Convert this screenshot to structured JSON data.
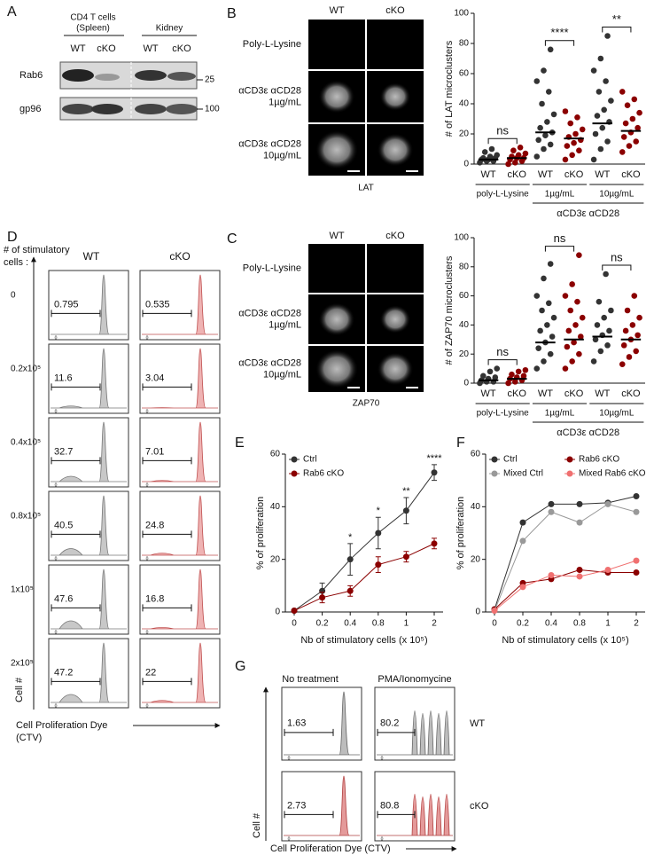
{
  "panel_a": {
    "label": "A",
    "group_1": [
      "CD4 T cells",
      "(Spleen)"
    ],
    "group_2": "Kidney",
    "lanes": [
      "WT",
      "cKO",
      "WT",
      "cKO"
    ],
    "rows": [
      "Rab6",
      "gp96"
    ],
    "markers": [
      25,
      100
    ]
  },
  "panel_b": {
    "label": "B",
    "columns": [
      "WT",
      "cKO"
    ],
    "rows": [
      [
        "Poly-L-Lysine"
      ],
      [
        "αCD3ε αCD28",
        "1µg/mL"
      ],
      [
        "αCD3ε αCD28",
        "10µg/mL"
      ]
    ],
    "stain": "LAT"
  },
  "panel_c": {
    "label": "C",
    "columns": [
      "WT",
      "cKO"
    ],
    "rows": [
      [
        "Poly-L-Lysine"
      ],
      [
        "αCD3ε αCD28",
        "1µg/mL"
      ],
      [
        "αCD3ε αCD28",
        "10µg/mL"
      ]
    ],
    "stain": "ZAP70"
  },
  "panel_d": {
    "label": "D",
    "axis_title": [
      "# of stimulatory",
      "cells :"
    ],
    "columns": [
      "WT",
      "cKO"
    ],
    "rows": [
      "0",
      "0.2x10⁵",
      "0.4x10⁵",
      "0.8x10⁵",
      "1x10⁵",
      "2x10⁵"
    ],
    "gates": [
      [
        0.795,
        0.535
      ],
      [
        11.6,
        3.04
      ],
      [
        32.7,
        7.01
      ],
      [
        40.5,
        24.8
      ],
      [
        47.6,
        16.8
      ],
      [
        47.2,
        22
      ]
    ],
    "axis_zero": 0,
    "y_axis": "Cell #",
    "x_axis": [
      "Cell Proliferation Dye",
      "(CTV)"
    ]
  },
  "panel_e": {
    "label": "E"
  },
  "panel_f": {
    "label": "F"
  },
  "panel_g": {
    "label": "G",
    "columns": [
      "No treatment",
      "PMA/Ionomycine"
    ],
    "rows": [
      "WT",
      "cKO"
    ],
    "gates": [
      [
        1.63,
        80.2
      ],
      [
        2.73,
        80.8
      ]
    ],
    "y_axis": "Cell #",
    "x_axis": "Cell Proliferation Dye (CTV)"
  },
  "chart_data": [
    {
      "type": "dot",
      "ylabel": "# of LAT microclusters",
      "ylim": [
        0,
        100
      ],
      "yticks": [
        0,
        20,
        40,
        60,
        80,
        100
      ],
      "categories": [
        "WT",
        "cKO",
        "WT",
        "cKO",
        "WT",
        "cKO"
      ],
      "colors": [
        "#333333",
        "#8b0000"
      ],
      "groups": [
        "poly-L-Lysine",
        "1µg/mL",
        "10µg/mL"
      ],
      "group_title": "αCD3ε αCD28",
      "significance": [
        "ns",
        "****",
        "**"
      ],
      "points": [
        [
          1,
          2,
          2,
          3,
          3,
          4,
          4,
          5,
          6,
          8,
          10
        ],
        [
          0,
          1,
          2,
          3,
          4,
          4,
          5,
          6,
          7,
          9,
          11
        ],
        [
          5,
          10,
          13,
          16,
          19,
          21,
          24,
          28,
          33,
          40,
          48,
          55,
          62,
          76
        ],
        [
          3,
          6,
          9,
          12,
          14,
          16,
          18,
          20,
          23,
          27,
          31,
          35
        ],
        [
          3,
          10,
          15,
          20,
          24,
          28,
          32,
          36,
          42,
          48,
          55,
          62,
          70,
          85
        ],
        [
          8,
          12,
          15,
          18,
          21,
          24,
          27,
          30,
          34,
          39,
          43,
          48
        ]
      ],
      "means": [
        3,
        4,
        21,
        17,
        27,
        22
      ]
    },
    {
      "type": "dot",
      "ylabel": "# of ZAP70 microclusters",
      "ylim": [
        0,
        100
      ],
      "yticks": [
        0,
        20,
        40,
        60,
        80,
        100
      ],
      "categories": [
        "WT",
        "cKO",
        "WT",
        "cKO",
        "WT",
        "cKO"
      ],
      "colors": [
        "#333333",
        "#8b0000"
      ],
      "groups": [
        "poly-L-Lysine",
        "1µg/mL",
        "10µg/mL"
      ],
      "group_title": "αCD3ε αCD28",
      "significance": [
        "ns",
        "ns",
        "ns"
      ],
      "points": [
        [
          0,
          1,
          1,
          2,
          3,
          4,
          5,
          8,
          10
        ],
        [
          0,
          1,
          2,
          3,
          4,
          5,
          6,
          8,
          9
        ],
        [
          10,
          15,
          20,
          24,
          28,
          32,
          36,
          40,
          45,
          50,
          55,
          60,
          72,
          82
        ],
        [
          10,
          15,
          20,
          25,
          28,
          32,
          36,
          40,
          45,
          50,
          56,
          60,
          68,
          88
        ],
        [
          15,
          22,
          26,
          30,
          33,
          36,
          40,
          45,
          50,
          56,
          75
        ],
        [
          13,
          18,
          22,
          26,
          30,
          33,
          36,
          40,
          45,
          50,
          60
        ]
      ],
      "means": [
        2,
        3,
        28,
        30,
        32,
        30
      ]
    },
    {
      "type": "line",
      "xlabel": "Nb of stimulatory cells (x 10⁵)",
      "ylabel": "% of proliferation",
      "ylim": [
        0,
        60
      ],
      "yticks": [
        0,
        20,
        40,
        60
      ],
      "categories": [
        "0",
        "0.2",
        "0.4",
        "0.8",
        "1",
        "2"
      ],
      "legend": "upper left",
      "significance": [
        null,
        null,
        "*",
        "*",
        "**",
        "****"
      ],
      "series": [
        {
          "name": "Ctrl",
          "color": "#333333",
          "values": [
            0.5,
            8,
            20,
            30,
            38.5,
            53
          ],
          "errors": [
            0,
            3,
            6,
            6,
            5,
            3
          ]
        },
        {
          "name": "Rab6 cKO",
          "color": "#8b0000",
          "values": [
            0.5,
            5.5,
            8,
            18,
            21,
            26
          ],
          "errors": [
            0,
            2,
            2,
            3,
            2,
            2
          ]
        }
      ]
    },
    {
      "type": "line",
      "xlabel": "Nb of stimulatory cells (x 10⁵)",
      "ylabel": "% of proliferation",
      "ylim": [
        0,
        60
      ],
      "yticks": [
        0,
        20,
        40,
        60
      ],
      "categories": [
        "0",
        "0.2",
        "0.4",
        "0.8",
        "1",
        "2"
      ],
      "legend": "upper left",
      "series": [
        {
          "name": "Ctrl",
          "color": "#333333",
          "values": [
            1,
            34,
            41,
            41,
            41.5,
            44
          ]
        },
        {
          "name": "Rab6 cKO",
          "color": "#8b0000",
          "values": [
            1,
            11,
            12.5,
            16,
            15,
            15
          ]
        },
        {
          "name": "Mixed Ctrl",
          "color": "#999999",
          "values": [
            0.5,
            27,
            38,
            34,
            41,
            38
          ]
        },
        {
          "name": "Mixed Rab6 cKO",
          "color": "#f07070",
          "values": [
            0.5,
            9.5,
            14,
            13.5,
            16,
            19.5
          ]
        }
      ]
    }
  ]
}
